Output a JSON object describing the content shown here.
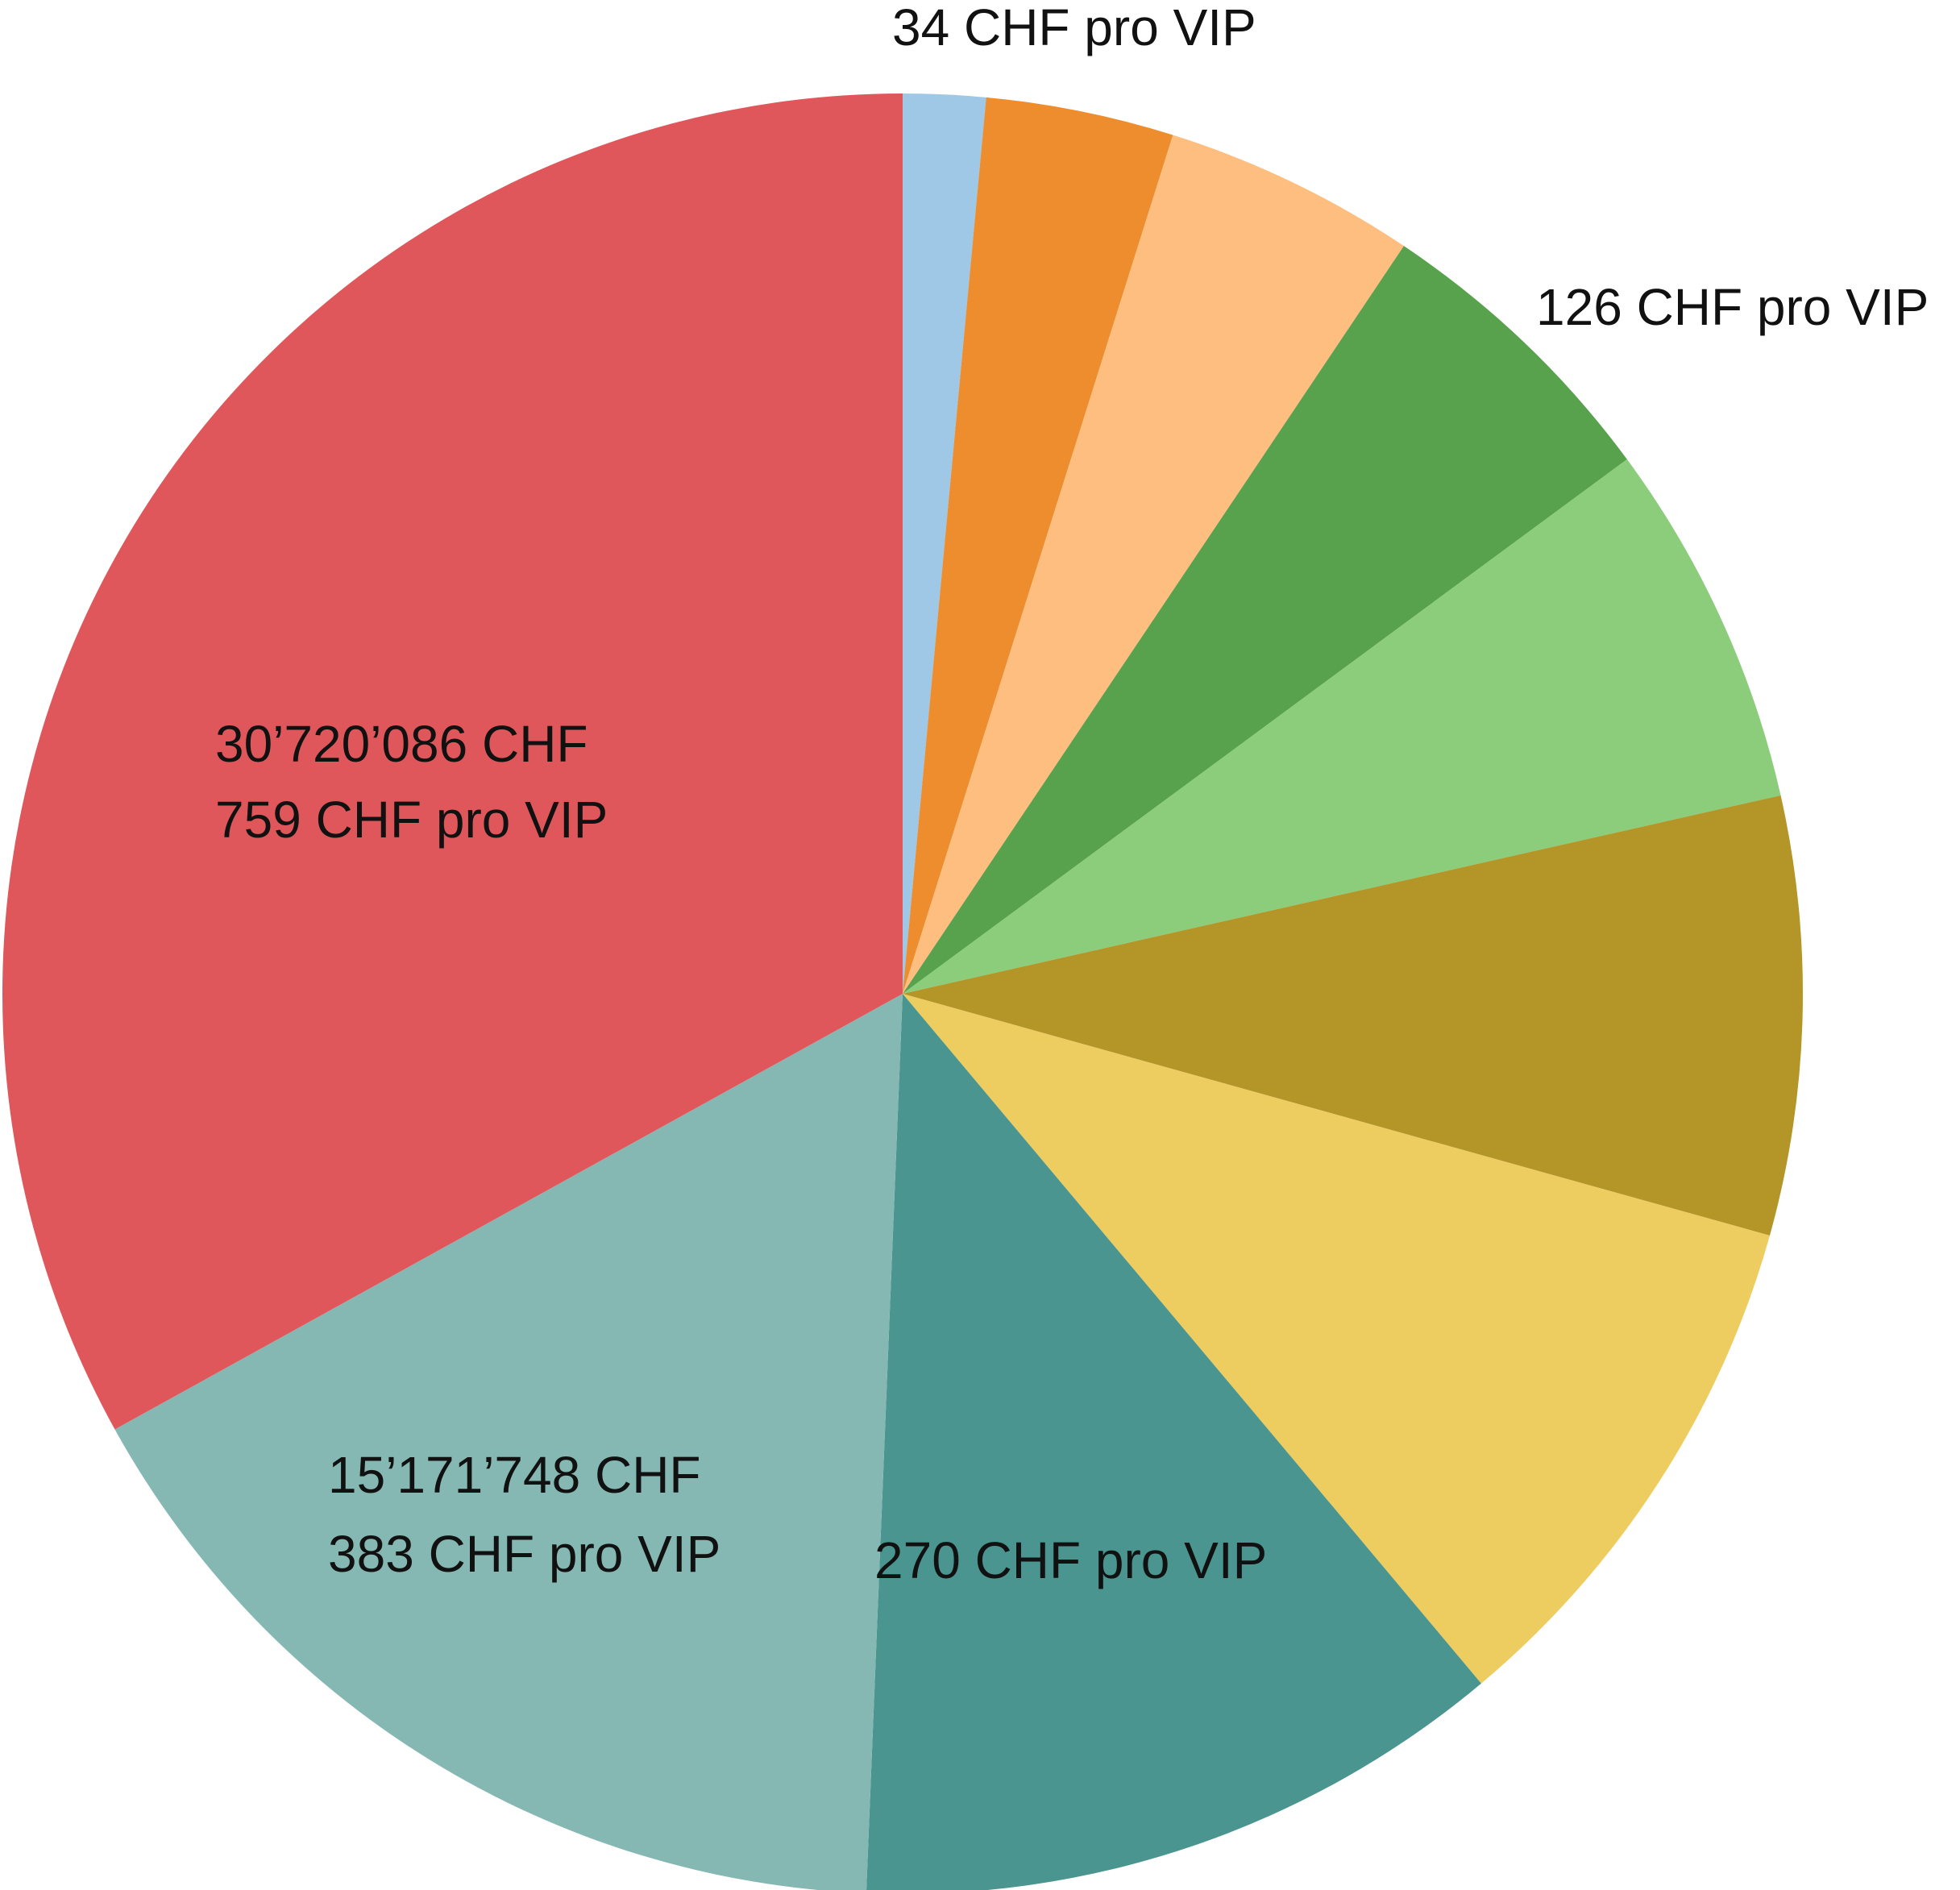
{
  "chart_data": {
    "type": "pie",
    "values": [
      1376000,
      3137000,
      4226000,
      5100000,
      6118000,
      7311000,
      8892000,
      10928000,
      15171748,
      30720086
    ],
    "colors": [
      "#9ec8e6",
      "#ee8d2d",
      "#fdbe80",
      "#58a14d",
      "#8ccd7c",
      "#b39528",
      "#edcc60",
      "#4a958f",
      "#85b8b2",
      "#e0575b"
    ],
    "value_labels": [
      null,
      null,
      null,
      null,
      null,
      null,
      null,
      null,
      "15’171’748 CHF",
      "30’720’086 CHF"
    ],
    "vip_labels": [
      "34 CHF pro VIP",
      null,
      null,
      "126 CHF pro VIP",
      null,
      null,
      null,
      "270 CHF pro VIP",
      "383 CHF pro VIP",
      "759 CHF pro VIP"
    ]
  }
}
